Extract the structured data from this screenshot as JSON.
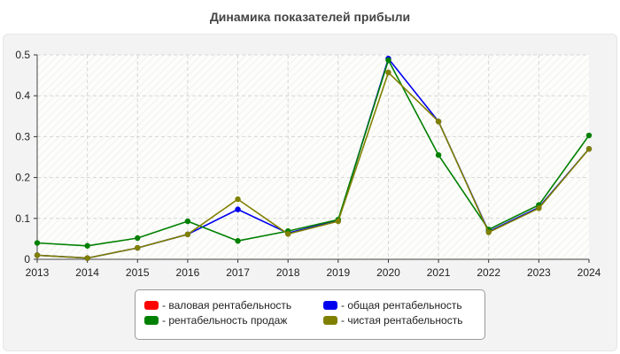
{
  "chart_data": {
    "type": "line",
    "title": "Динамика показателей прибыли",
    "xlabel": "",
    "ylabel": "",
    "x": [
      "2013",
      "2014",
      "2015",
      "2016",
      "2017",
      "2018",
      "2019",
      "2020",
      "2021",
      "2022",
      "2023",
      "2024"
    ],
    "ylim": [
      0,
      0.5
    ],
    "yticks": [
      "0",
      "0.1",
      "0.2",
      "0.3",
      "0.4",
      "0.5"
    ],
    "grid": true,
    "legend_position": "bottom",
    "series": [
      {
        "name": "валовая рентабельность",
        "color": "#ff0000",
        "values": [
          null,
          null,
          null,
          null,
          null,
          null,
          null,
          null,
          null,
          null,
          null,
          null
        ]
      },
      {
        "name": "общая рентабельность",
        "color": "#0000ee",
        "values": [
          0.01,
          0.003,
          0.028,
          0.061,
          0.122,
          0.064,
          0.095,
          0.491,
          0.337,
          0.068,
          0.127,
          0.27
        ]
      },
      {
        "name": "рентабельность продаж",
        "color": "#008000",
        "values": [
          0.04,
          0.033,
          0.052,
          0.093,
          0.045,
          0.069,
          0.097,
          0.487,
          0.255,
          0.073,
          0.133,
          0.303
        ]
      },
      {
        "name": "чистая рентабельность",
        "color": "#808000",
        "values": [
          0.01,
          0.003,
          0.028,
          0.061,
          0.147,
          0.062,
          0.093,
          0.457,
          0.337,
          0.066,
          0.125,
          0.27
        ]
      }
    ],
    "legend_prefix": "- "
  }
}
